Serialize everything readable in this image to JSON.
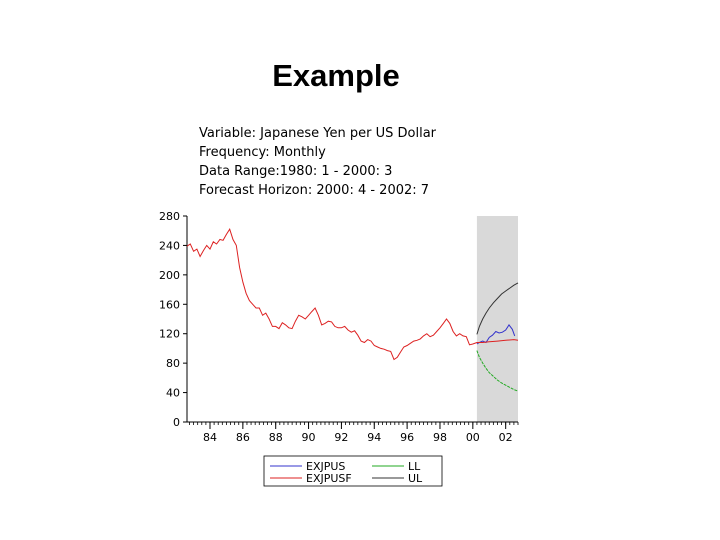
{
  "slide_title": "Example",
  "info_lines": [
    "Variable: Japanese Yen per US Dollar",
    "Frequency: Monthly",
    "Data Range:1980: 1 - 2000: 3",
    "Forecast Horizon: 2000: 4 - 2002: 7"
  ],
  "chart_data": {
    "type": "line",
    "xlim": [
      1982.6,
      2002.75
    ],
    "ylim": [
      0,
      280
    ],
    "x_ticks": [
      "84",
      "86",
      "88",
      "90",
      "92",
      "94",
      "96",
      "98",
      "00",
      "02"
    ],
    "x_tick_values": [
      1984,
      1986,
      1988,
      1990,
      1992,
      1994,
      1996,
      1998,
      2000,
      2002
    ],
    "y_ticks": [
      0,
      40,
      80,
      120,
      160,
      200,
      240,
      280
    ],
    "y_tick_labels": [
      "0",
      "40",
      "80",
      "120",
      "160",
      "200",
      "240",
      "280"
    ],
    "forecast_shading": {
      "start": 2000.25,
      "end": 2002.75,
      "color": "#d9d9d9"
    },
    "series": [
      {
        "name": "EXJPUS",
        "color": "#3333cc",
        "x": [
          2000.25,
          2000.4,
          2000.6,
          2000.8,
          2001.0,
          2001.2,
          2001.4,
          2001.6,
          2001.8,
          2002.0,
          2002.2,
          2002.4,
          2002.55
        ],
        "y": [
          106,
          108,
          110,
          108,
          115,
          118,
          123,
          121,
          122,
          125,
          132,
          126,
          117
        ]
      },
      {
        "name": "EXJPUSF",
        "color": "#dd2222",
        "x": [
          1982.6,
          1982.8,
          1983.0,
          1983.2,
          1983.4,
          1983.6,
          1983.8,
          1984.0,
          1984.2,
          1984.4,
          1984.6,
          1984.8,
          1985.0,
          1985.2,
          1985.4,
          1985.6,
          1985.8,
          1986.0,
          1986.2,
          1986.4,
          1986.6,
          1986.8,
          1987.0,
          1987.2,
          1987.4,
          1987.6,
          1987.8,
          1988.0,
          1988.2,
          1988.4,
          1988.6,
          1988.8,
          1989.0,
          1989.2,
          1989.4,
          1989.6,
          1989.8,
          1990.0,
          1990.2,
          1990.4,
          1990.6,
          1990.8,
          1991.0,
          1991.2,
          1991.4,
          1991.6,
          1991.8,
          1992.0,
          1992.2,
          1992.4,
          1992.6,
          1992.8,
          1993.0,
          1993.2,
          1993.4,
          1993.6,
          1993.8,
          1994.0,
          1994.2,
          1994.4,
          1994.6,
          1994.8,
          1995.0,
          1995.2,
          1995.4,
          1995.6,
          1995.8,
          1996.0,
          1996.2,
          1996.4,
          1996.6,
          1996.8,
          1997.0,
          1997.2,
          1997.4,
          1997.6,
          1997.8,
          1998.0,
          1998.2,
          1998.4,
          1998.6,
          1998.8,
          1999.0,
          1999.2,
          1999.4,
          1999.6,
          1999.8,
          2000.0,
          2000.25,
          2000.6,
          2001.0,
          2001.5,
          2002.0,
          2002.5,
          2002.75
        ],
        "y": [
          239,
          242,
          232,
          235,
          225,
          233,
          240,
          235,
          245,
          242,
          248,
          247,
          255,
          262,
          248,
          240,
          210,
          190,
          175,
          165,
          160,
          155,
          155,
          145,
          148,
          140,
          130,
          130,
          127,
          135,
          132,
          128,
          127,
          137,
          145,
          143,
          140,
          145,
          150,
          155,
          145,
          132,
          134,
          137,
          136,
          130,
          128,
          128,
          130,
          125,
          122,
          124,
          118,
          110,
          108,
          112,
          110,
          104,
          102,
          100,
          99,
          97,
          96,
          85,
          88,
          95,
          102,
          104,
          107,
          110,
          111,
          113,
          117,
          120,
          116,
          118,
          123,
          128,
          134,
          140,
          134,
          123,
          117,
          120,
          117,
          116,
          105,
          106,
          108,
          108,
          109,
          110,
          111,
          112,
          111
        ]
      },
      {
        "name": "LL",
        "color": "#22aa22",
        "x": [
          2000.25,
          2000.4,
          2000.6,
          2000.8,
          2001.0,
          2001.25,
          2001.5,
          2001.75,
          2002.0,
          2002.25,
          2002.5,
          2002.75
        ],
        "y": [
          97,
          88,
          80,
          73,
          67,
          62,
          57,
          53,
          50,
          47,
          44,
          42
        ]
      },
      {
        "name": "UL",
        "color": "#333333",
        "x": [
          2000.25,
          2000.4,
          2000.6,
          2000.8,
          2001.0,
          2001.25,
          2001.5,
          2001.75,
          2002.0,
          2002.25,
          2002.5,
          2002.75
        ],
        "y": [
          119,
          130,
          140,
          148,
          155,
          162,
          168,
          174,
          178,
          182,
          186,
          189
        ]
      }
    ],
    "legend": {
      "placement": "bottom",
      "entries": [
        {
          "name": "EXJPUS",
          "color": "#3333cc"
        },
        {
          "name": "LL",
          "color": "#22aa22"
        },
        {
          "name": "EXJPUSF",
          "color": "#dd2222"
        },
        {
          "name": "UL",
          "color": "#333333"
        }
      ]
    }
  }
}
